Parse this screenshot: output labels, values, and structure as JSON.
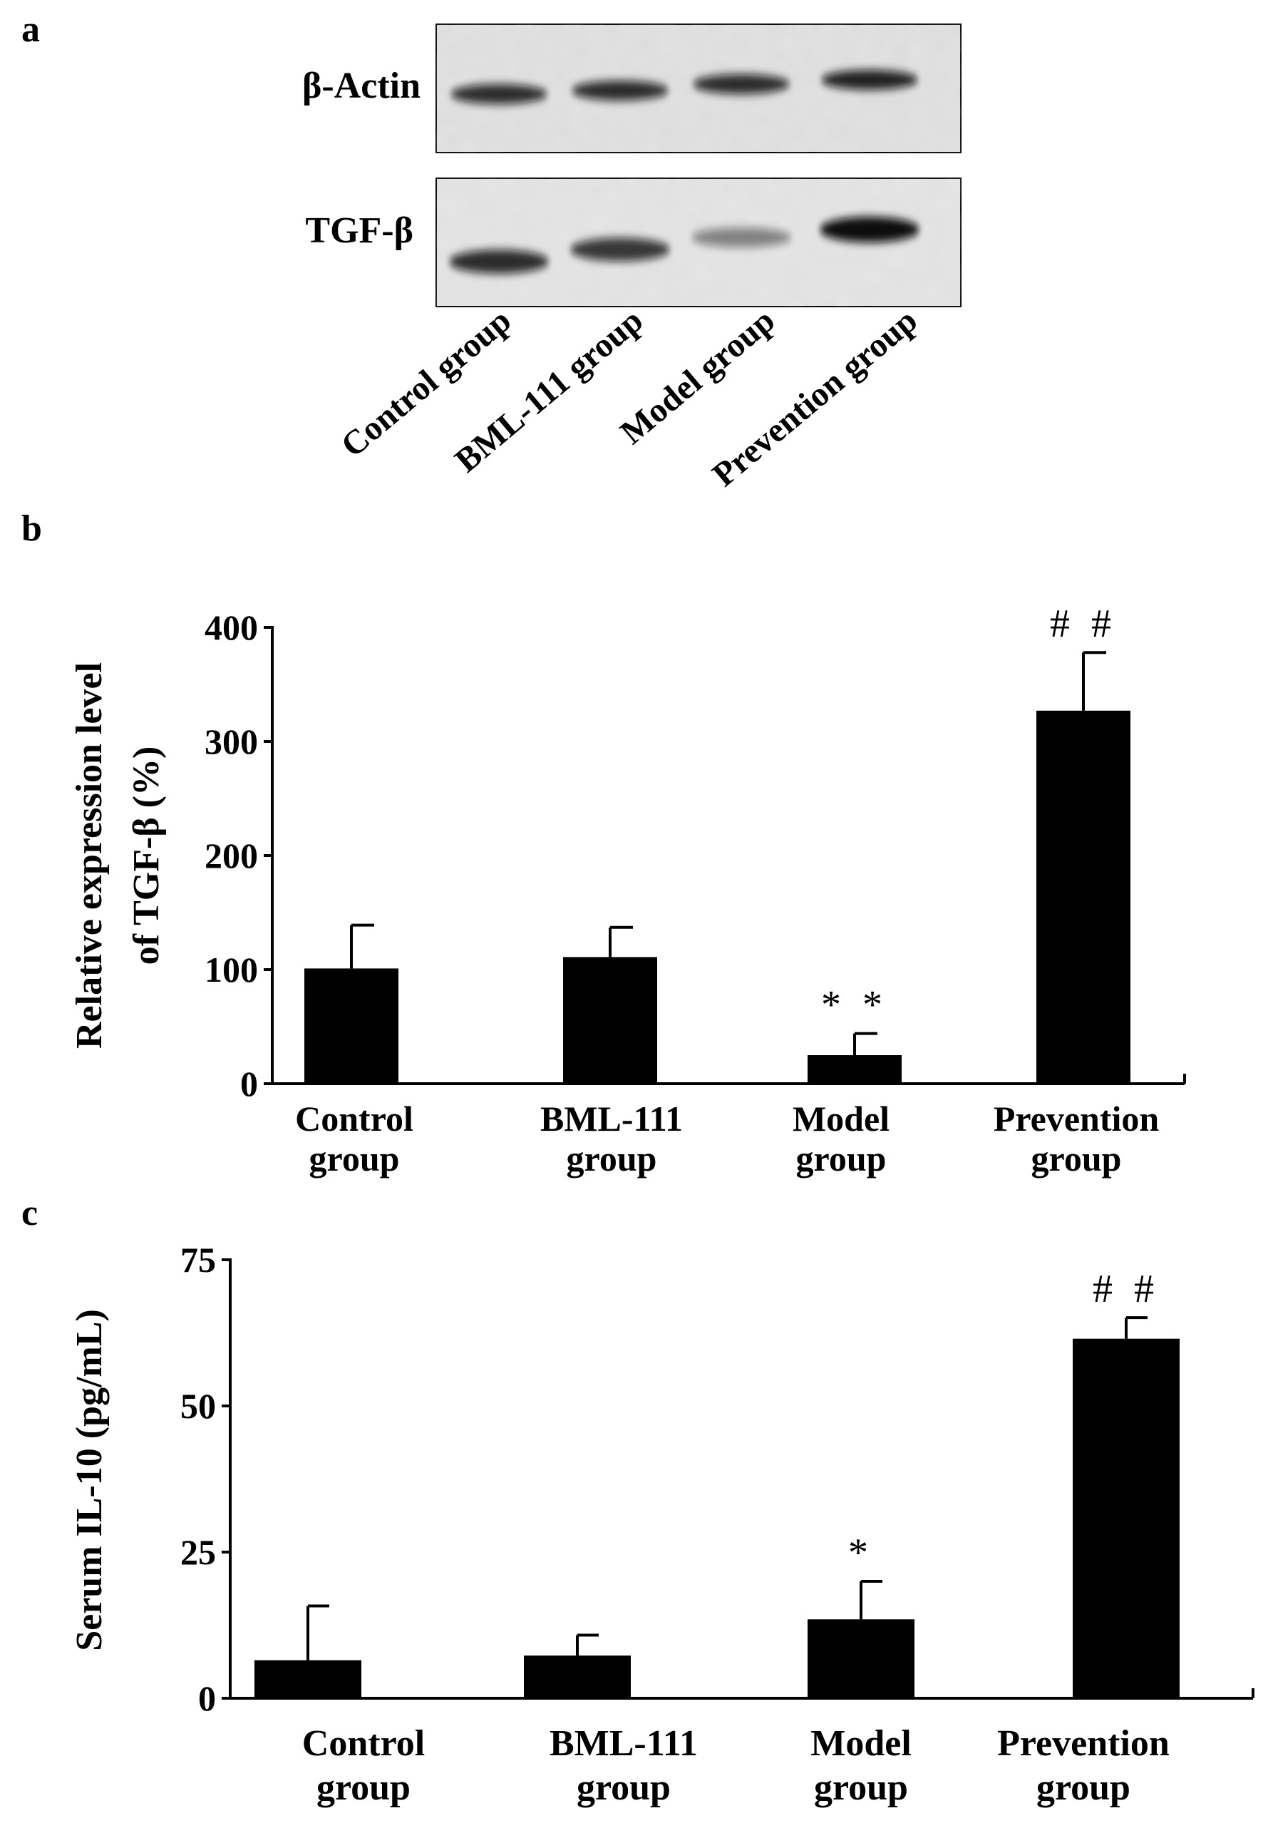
{
  "panels": {
    "a": "a",
    "b": "b",
    "c": "c"
  },
  "blot": {
    "row_labels": [
      "β-Actin",
      "TGF-β"
    ],
    "lane_labels": [
      "Control group",
      "BML-111 group",
      "Model group",
      "Prevention group"
    ],
    "actin_band_intensity": [
      0.85,
      0.85,
      0.85,
      0.9
    ],
    "tgf_band_intensity": [
      0.85,
      0.8,
      0.45,
      1.0
    ]
  },
  "chart_data": [
    {
      "type": "bar",
      "panel": "b",
      "categories": [
        "Control group",
        "BML-111 group",
        "Model group",
        "Prevention group"
      ],
      "category_lines": [
        [
          "Control",
          "group"
        ],
        [
          "BML-111",
          "group"
        ],
        [
          "Model",
          "group"
        ],
        [
          "Prevention",
          "group"
        ]
      ],
      "values": [
        101,
        111,
        25,
        327
      ],
      "errors": [
        38,
        26,
        19,
        51
      ],
      "annotations": [
        "",
        "",
        "**",
        "##"
      ],
      "ylabel_lines": [
        "Relative expression level",
        "of TGF-β (%)"
      ],
      "ylim": [
        0,
        400
      ],
      "yticks": [
        0,
        100,
        200,
        300,
        400
      ],
      "title": "",
      "xlabel": ""
    },
    {
      "type": "bar",
      "panel": "c",
      "categories": [
        "Control group",
        "BML-111 group",
        "Model group",
        "Prevention group"
      ],
      "category_lines": [
        [
          "Control",
          "group"
        ],
        [
          "BML-111",
          "group"
        ],
        [
          "Model",
          "group"
        ],
        [
          "Prevention",
          "group"
        ]
      ],
      "values": [
        6.5,
        7.3,
        13.5,
        61.5
      ],
      "errors": [
        9.3,
        3.5,
        6.5,
        3.6
      ],
      "annotations": [
        "",
        "",
        "*",
        "##"
      ],
      "ylabel_lines": [
        "Serum IL-10 (pg/mL)"
      ],
      "ylim": [
        0,
        75
      ],
      "yticks": [
        0,
        25,
        50,
        75
      ],
      "title": "",
      "xlabel": ""
    }
  ]
}
